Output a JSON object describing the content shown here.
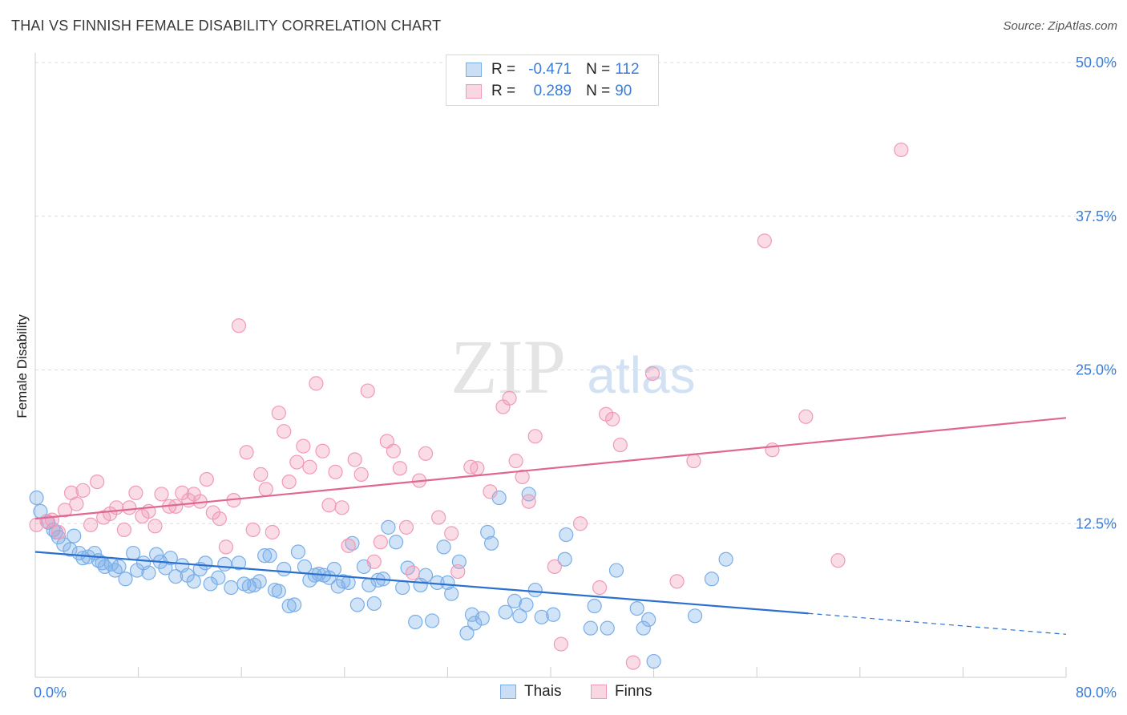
{
  "header": {
    "title": "THAI VS FINNISH FEMALE DISABILITY CORRELATION CHART",
    "source": "Source: ZipAtlas.com"
  },
  "watermark": {
    "zip": "ZIP",
    "atlas": "atlas"
  },
  "legend": {
    "rows": [
      {
        "r_label": "R =",
        "r_value": "-0.471",
        "n_label": "N =",
        "n_value": "112",
        "color": "#7aaee8"
      },
      {
        "r_label": "R =",
        "r_value": "0.289",
        "n_label": "N =",
        "n_value": "90",
        "color": "#f19ab6"
      }
    ]
  },
  "bottom_legend": {
    "items": [
      {
        "label": "Thais",
        "color": "#7aaee8"
      },
      {
        "label": "Finns",
        "color": "#f19ab6"
      }
    ]
  },
  "chart_data": {
    "type": "scatter",
    "title": "THAI VS FINNISH FEMALE DISABILITY CORRELATION CHART",
    "xlabel": "",
    "ylabel": "Female Disability",
    "xlim": [
      0,
      80
    ],
    "ylim": [
      0,
      50
    ],
    "x_tick_labels": [
      "0.0%",
      "80.0%"
    ],
    "y_ticks": [
      12.5,
      25.0,
      37.5,
      50.0
    ],
    "y_tick_labels": [
      "12.5%",
      "25.0%",
      "37.5%",
      "50.0%"
    ],
    "grid": "horizontal dashed",
    "legend_position": "top-center",
    "series": [
      {
        "name": "Thais",
        "color": "#7aaee8",
        "line_color": "#2b6fcf",
        "trend": {
          "x0": 0,
          "y0": 10.2,
          "x1": 60,
          "y1": 5.2,
          "dashed_to_x": 80,
          "dashed_to_y": 3.5
        },
        "points": [
          [
            0.1,
            14.6
          ],
          [
            0.4,
            13.5
          ],
          [
            1.0,
            12.6
          ],
          [
            1.4,
            12.0
          ],
          [
            1.6,
            11.8
          ],
          [
            1.8,
            11.4
          ],
          [
            2.2,
            10.8
          ],
          [
            2.7,
            10.4
          ],
          [
            3.0,
            11.5
          ],
          [
            3.4,
            10.1
          ],
          [
            3.7,
            9.7
          ],
          [
            4.1,
            9.8
          ],
          [
            4.6,
            10.1
          ],
          [
            4.9,
            9.5
          ],
          [
            5.2,
            9.3
          ],
          [
            5.4,
            9.0
          ],
          [
            5.9,
            9.2
          ],
          [
            6.2,
            8.7
          ],
          [
            6.5,
            9.0
          ],
          [
            7.0,
            8.0
          ],
          [
            7.6,
            10.1
          ],
          [
            7.9,
            8.7
          ],
          [
            8.4,
            9.3
          ],
          [
            8.8,
            8.5
          ],
          [
            9.4,
            10.0
          ],
          [
            9.7,
            9.4
          ],
          [
            10.1,
            8.9
          ],
          [
            10.5,
            9.7
          ],
          [
            10.9,
            8.2
          ],
          [
            11.4,
            9.1
          ],
          [
            11.8,
            8.3
          ],
          [
            12.3,
            7.8
          ],
          [
            12.8,
            8.8
          ],
          [
            13.2,
            9.3
          ],
          [
            13.6,
            7.6
          ],
          [
            14.2,
            8.1
          ],
          [
            14.7,
            9.2
          ],
          [
            15.2,
            7.3
          ],
          [
            15.8,
            9.3
          ],
          [
            16.2,
            7.6
          ],
          [
            16.6,
            7.4
          ],
          [
            17.0,
            7.5
          ],
          [
            17.4,
            7.8
          ],
          [
            17.8,
            9.9
          ],
          [
            18.2,
            9.9
          ],
          [
            18.6,
            7.1
          ],
          [
            18.9,
            7.0
          ],
          [
            19.3,
            8.8
          ],
          [
            19.7,
            5.8
          ],
          [
            20.1,
            5.9
          ],
          [
            20.4,
            10.2
          ],
          [
            20.9,
            9.0
          ],
          [
            21.3,
            7.9
          ],
          [
            21.7,
            8.3
          ],
          [
            22.0,
            8.4
          ],
          [
            22.4,
            8.3
          ],
          [
            22.8,
            8.1
          ],
          [
            23.2,
            8.8
          ],
          [
            23.5,
            7.4
          ],
          [
            23.9,
            7.8
          ],
          [
            24.3,
            7.7
          ],
          [
            24.6,
            10.9
          ],
          [
            25.0,
            5.9
          ],
          [
            25.5,
            9.0
          ],
          [
            25.9,
            7.5
          ],
          [
            26.3,
            6.0
          ],
          [
            26.6,
            7.9
          ],
          [
            27.0,
            8.0
          ],
          [
            27.4,
            12.2
          ],
          [
            28.0,
            11.0
          ],
          [
            28.5,
            7.3
          ],
          [
            28.9,
            8.9
          ],
          [
            29.5,
            4.5
          ],
          [
            29.9,
            7.5
          ],
          [
            30.3,
            8.3
          ],
          [
            30.8,
            4.6
          ],
          [
            31.2,
            7.7
          ],
          [
            31.7,
            10.6
          ],
          [
            32.0,
            7.7
          ],
          [
            32.3,
            6.8
          ],
          [
            32.9,
            9.4
          ],
          [
            33.5,
            3.6
          ],
          [
            33.9,
            5.1
          ],
          [
            34.1,
            4.4
          ],
          [
            34.7,
            4.8
          ],
          [
            35.1,
            11.8
          ],
          [
            35.4,
            10.9
          ],
          [
            36.0,
            14.6
          ],
          [
            36.5,
            5.3
          ],
          [
            37.2,
            6.2
          ],
          [
            37.6,
            5.0
          ],
          [
            38.1,
            5.9
          ],
          [
            38.3,
            14.9
          ],
          [
            38.8,
            7.1
          ],
          [
            39.3,
            4.9
          ],
          [
            40.2,
            5.1
          ],
          [
            41.2,
            11.6
          ],
          [
            41.1,
            9.6
          ],
          [
            43.1,
            4.0
          ],
          [
            43.4,
            5.8
          ],
          [
            44.4,
            4.0
          ],
          [
            45.1,
            8.7
          ],
          [
            46.7,
            5.6
          ],
          [
            47.2,
            4.0
          ],
          [
            47.6,
            4.7
          ],
          [
            48.0,
            1.3
          ],
          [
            51.2,
            5.0
          ],
          [
            52.5,
            8.0
          ],
          [
            53.6,
            9.6
          ]
        ]
      },
      {
        "name": "Finns",
        "color": "#f19ab6",
        "line_color": "#e0678f",
        "trend": {
          "x0": 0,
          "y0": 12.9,
          "x1": 80,
          "y1": 21.1
        },
        "points": [
          [
            0.1,
            12.4
          ],
          [
            0.9,
            12.7
          ],
          [
            1.3,
            12.8
          ],
          [
            1.8,
            11.8
          ],
          [
            2.3,
            13.6
          ],
          [
            2.8,
            15.0
          ],
          [
            3.2,
            14.1
          ],
          [
            3.7,
            15.2
          ],
          [
            4.3,
            12.4
          ],
          [
            4.8,
            15.9
          ],
          [
            5.3,
            13.0
          ],
          [
            5.8,
            13.3
          ],
          [
            6.3,
            13.8
          ],
          [
            6.9,
            12.0
          ],
          [
            7.3,
            13.8
          ],
          [
            7.8,
            15.0
          ],
          [
            8.3,
            13.1
          ],
          [
            8.8,
            13.5
          ],
          [
            9.3,
            12.3
          ],
          [
            9.8,
            14.9
          ],
          [
            10.4,
            13.9
          ],
          [
            10.9,
            13.9
          ],
          [
            11.4,
            15.0
          ],
          [
            11.9,
            14.4
          ],
          [
            12.3,
            14.9
          ],
          [
            12.8,
            14.3
          ],
          [
            13.3,
            16.1
          ],
          [
            13.8,
            13.4
          ],
          [
            14.3,
            12.9
          ],
          [
            14.8,
            10.6
          ],
          [
            15.4,
            14.4
          ],
          [
            15.8,
            28.6
          ],
          [
            16.4,
            18.3
          ],
          [
            16.9,
            12.0
          ],
          [
            17.5,
            16.5
          ],
          [
            17.9,
            15.3
          ],
          [
            18.4,
            11.8
          ],
          [
            18.9,
            21.5
          ],
          [
            19.3,
            20.0
          ],
          [
            19.7,
            15.9
          ],
          [
            20.3,
            17.5
          ],
          [
            20.8,
            18.8
          ],
          [
            21.3,
            17.1
          ],
          [
            21.8,
            23.9
          ],
          [
            22.3,
            18.4
          ],
          [
            22.8,
            14.0
          ],
          [
            23.3,
            16.7
          ],
          [
            23.8,
            13.8
          ],
          [
            24.3,
            10.7
          ],
          [
            24.8,
            17.7
          ],
          [
            25.3,
            16.5
          ],
          [
            25.8,
            23.3
          ],
          [
            26.3,
            9.4
          ],
          [
            26.8,
            11.0
          ],
          [
            27.3,
            19.2
          ],
          [
            27.8,
            18.4
          ],
          [
            28.3,
            17.0
          ],
          [
            28.8,
            12.2
          ],
          [
            29.3,
            8.5
          ],
          [
            29.8,
            16.0
          ],
          [
            30.3,
            18.2
          ],
          [
            31.3,
            13.0
          ],
          [
            32.3,
            11.7
          ],
          [
            32.8,
            8.6
          ],
          [
            33.8,
            17.1
          ],
          [
            34.3,
            17.0
          ],
          [
            35.3,
            15.1
          ],
          [
            36.3,
            22.0
          ],
          [
            36.8,
            22.7
          ],
          [
            37.3,
            17.6
          ],
          [
            37.8,
            16.3
          ],
          [
            38.3,
            14.3
          ],
          [
            38.8,
            19.6
          ],
          [
            40.3,
            9.0
          ],
          [
            40.8,
            2.7
          ],
          [
            42.3,
            12.5
          ],
          [
            43.8,
            7.3
          ],
          [
            44.3,
            21.4
          ],
          [
            44.8,
            21.0
          ],
          [
            45.4,
            18.9
          ],
          [
            46.4,
            1.2
          ],
          [
            47.9,
            24.7
          ],
          [
            49.8,
            7.8
          ],
          [
            51.1,
            17.6
          ],
          [
            56.6,
            35.5
          ],
          [
            57.2,
            18.5
          ],
          [
            59.8,
            21.2
          ],
          [
            62.3,
            9.5
          ],
          [
            67.2,
            42.9
          ]
        ]
      }
    ]
  }
}
